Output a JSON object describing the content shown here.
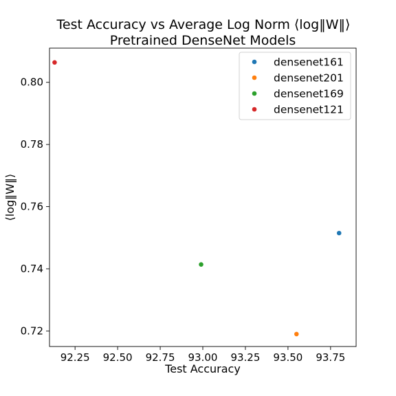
{
  "chart_data": {
    "type": "scatter",
    "title": "Test Accuracy vs Average Log Norm ⟨log‖W‖⟩",
    "subtitle": "Pretrained DenseNet  Models",
    "xlabel": "Test Accuracy",
    "ylabel": "⟨log‖W‖⟩",
    "xlim": [
      92.1,
      93.9
    ],
    "ylim": [
      0.715,
      0.811
    ],
    "xticks": [
      92.25,
      92.5,
      92.75,
      93.0,
      93.25,
      93.5,
      93.75
    ],
    "xtick_labels": [
      "92.25",
      "92.50",
      "92.75",
      "93.00",
      "93.25",
      "93.50",
      "93.75"
    ],
    "yticks": [
      0.72,
      0.74,
      0.76,
      0.78,
      0.8
    ],
    "ytick_labels": [
      "0.72",
      "0.74",
      "0.76",
      "0.78",
      "0.80"
    ],
    "grid": false,
    "legend_position": "upper right",
    "series": [
      {
        "name": "densenet161",
        "color": "#1f77b4",
        "x": [
          93.8
        ],
        "y": [
          0.7515
        ]
      },
      {
        "name": "densenet201",
        "color": "#ff7f0e",
        "x": [
          93.55
        ],
        "y": [
          0.719
        ]
      },
      {
        "name": "densenet169",
        "color": "#2ca02c",
        "x": [
          92.99
        ],
        "y": [
          0.7414
        ]
      },
      {
        "name": "densenet121",
        "color": "#d62728",
        "x": [
          92.13
        ],
        "y": [
          0.8064
        ]
      }
    ]
  }
}
